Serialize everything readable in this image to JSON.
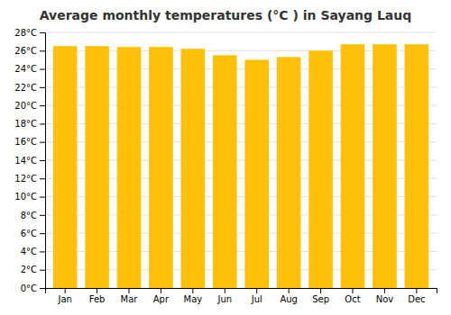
{
  "chart_data": {
    "type": "bar",
    "title": "Average monthly temperatures (°C ) in Sayang Lauq",
    "categories": [
      "Jan",
      "Feb",
      "Mar",
      "Apr",
      "May",
      "Jun",
      "Jul",
      "Aug",
      "Sep",
      "Oct",
      "Nov",
      "Dec"
    ],
    "values": [
      26.5,
      26.5,
      26.4,
      26.4,
      26.2,
      25.5,
      25.0,
      25.3,
      26.0,
      26.7,
      26.7,
      26.7
    ],
    "color": "#FFC107",
    "ylim": [
      0,
      28
    ],
    "yticks": [
      {
        "value": 0,
        "label": "0°C"
      },
      {
        "value": 2,
        "label": "2°C"
      },
      {
        "value": 4,
        "label": "4°C"
      },
      {
        "value": 6,
        "label": "6°C"
      },
      {
        "value": 8,
        "label": "8°C"
      },
      {
        "value": 10,
        "label": "10°C"
      },
      {
        "value": 12,
        "label": "12°C"
      },
      {
        "value": 14,
        "label": "14°C"
      },
      {
        "value": 16,
        "label": "16°C"
      },
      {
        "value": 18,
        "label": "18°C"
      },
      {
        "value": 20,
        "label": "20°C"
      },
      {
        "value": 22,
        "label": "22°C"
      },
      {
        "value": 24,
        "label": "24°C"
      },
      {
        "value": 26,
        "label": "26°C"
      },
      {
        "value": 28,
        "label": "28°C"
      }
    ],
    "grid": true
  }
}
